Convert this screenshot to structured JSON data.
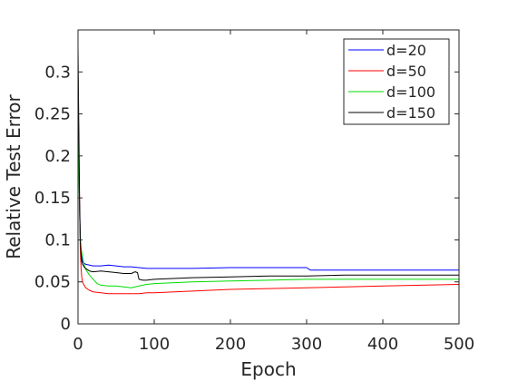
{
  "chart_data": {
    "type": "line",
    "title": "",
    "xlabel": "Epoch",
    "ylabel": "Relative Test Error",
    "xlim": [
      0,
      500
    ],
    "ylim": [
      0,
      0.35
    ],
    "xticks": [
      0,
      100,
      200,
      300,
      400,
      500
    ],
    "xtick_labels": [
      "0",
      "100",
      "200",
      "300",
      "400",
      "500"
    ],
    "yticks": [
      0,
      0.05,
      0.1,
      0.15,
      0.2,
      0.25,
      0.3
    ],
    "ytick_labels": [
      "0",
      "0.05",
      "0.1",
      "0.15",
      "0.2",
      "0.25",
      "0.3"
    ],
    "grid": false,
    "legend_position": "top-right",
    "series": [
      {
        "name": "d=20",
        "color": "#0000ff",
        "x": [
          0,
          1,
          2,
          3,
          4,
          5,
          6,
          8,
          10,
          15,
          20,
          30,
          40,
          50,
          60,
          70,
          80,
          90,
          100,
          150,
          200,
          250,
          300,
          305,
          350,
          400,
          450,
          500
        ],
        "y": [
          0.28,
          0.2,
          0.14,
          0.1,
          0.085,
          0.078,
          0.074,
          0.072,
          0.071,
          0.07,
          0.069,
          0.069,
          0.07,
          0.069,
          0.068,
          0.068,
          0.067,
          0.066,
          0.066,
          0.066,
          0.067,
          0.067,
          0.067,
          0.064,
          0.064,
          0.064,
          0.064,
          0.064
        ]
      },
      {
        "name": "d=50",
        "color": "#ff0000",
        "x": [
          0,
          1,
          2,
          3,
          4,
          5,
          6,
          8,
          10,
          15,
          20,
          30,
          40,
          50,
          60,
          70,
          80,
          90,
          100,
          150,
          200,
          250,
          300,
          350,
          400,
          450,
          500
        ],
        "y": [
          0.3,
          0.22,
          0.14,
          0.09,
          0.065,
          0.055,
          0.05,
          0.046,
          0.043,
          0.04,
          0.038,
          0.037,
          0.036,
          0.036,
          0.036,
          0.036,
          0.036,
          0.037,
          0.037,
          0.039,
          0.041,
          0.042,
          0.043,
          0.044,
          0.045,
          0.046,
          0.047
        ]
      },
      {
        "name": "d=100",
        "color": "#00dd00",
        "x": [
          0,
          1,
          2,
          3,
          4,
          5,
          6,
          8,
          10,
          15,
          20,
          25,
          30,
          40,
          50,
          60,
          70,
          80,
          90,
          100,
          150,
          200,
          250,
          300,
          350,
          400,
          450,
          500
        ],
        "y": [
          0.3,
          0.2,
          0.13,
          0.1,
          0.09,
          0.085,
          0.08,
          0.07,
          0.065,
          0.058,
          0.053,
          0.048,
          0.046,
          0.045,
          0.045,
          0.044,
          0.043,
          0.045,
          0.047,
          0.048,
          0.05,
          0.051,
          0.052,
          0.053,
          0.053,
          0.053,
          0.053,
          0.053
        ]
      },
      {
        "name": "d=150",
        "color": "#000000",
        "x": [
          0,
          1,
          2,
          3,
          4,
          5,
          6,
          8,
          10,
          15,
          20,
          30,
          40,
          50,
          60,
          70,
          75,
          78,
          80,
          85,
          90,
          100,
          150,
          200,
          250,
          300,
          350,
          400,
          450,
          500
        ],
        "y": [
          0.33,
          0.24,
          0.15,
          0.1,
          0.08,
          0.074,
          0.071,
          0.068,
          0.066,
          0.063,
          0.062,
          0.063,
          0.062,
          0.061,
          0.06,
          0.06,
          0.062,
          0.061,
          0.053,
          0.052,
          0.052,
          0.053,
          0.055,
          0.056,
          0.057,
          0.057,
          0.058,
          0.058,
          0.058,
          0.058
        ]
      }
    ]
  }
}
